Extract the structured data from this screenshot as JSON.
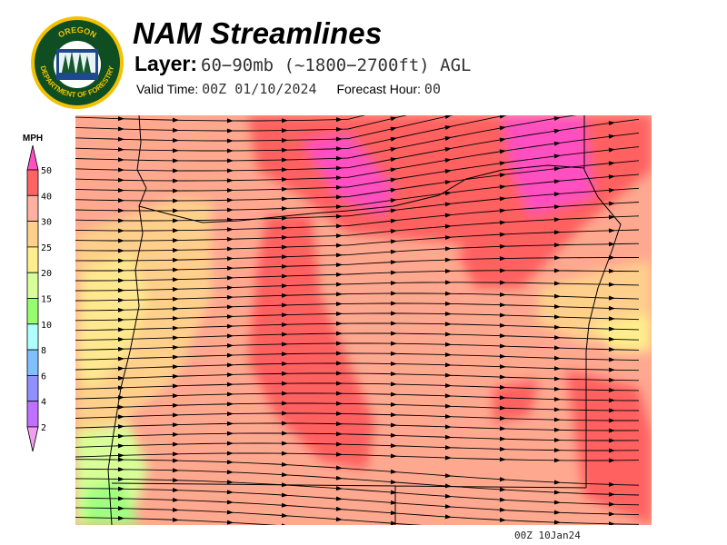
{
  "logo": {
    "top_text": "OREGON",
    "bottom_text": "DEPARTMENT OF FORESTRY",
    "colors": {
      "ring": "#f2c200",
      "field": "#0f4d22",
      "water": "#1d4a8a"
    }
  },
  "header": {
    "title": "NAM Streamlines",
    "layer_label": "Layer:",
    "layer_value": "60−90mb (~1800−2700ft) AGL",
    "valid_label": "Valid Time:",
    "valid_value": "00Z 01/10/2024",
    "forecast_label": "Forecast Hour:",
    "forecast_value": "00"
  },
  "legend": {
    "unit": "MPH",
    "labels": [
      "50",
      "40",
      "30",
      "25",
      "20",
      "15",
      "10",
      "8",
      "6",
      "4",
      "2"
    ],
    "bins": [
      {
        "range": "40-50",
        "color": "#ff6464"
      },
      {
        "range": "30-40",
        "color": "#ffb0a0"
      },
      {
        "range": "25-30",
        "color": "#ffd08c"
      },
      {
        "range": "20-25",
        "color": "#ffee8c"
      },
      {
        "range": "15-20",
        "color": "#d8ff98"
      },
      {
        "range": "10-15",
        "color": "#96ff6e"
      },
      {
        "range": "8-10",
        "color": "#b0ffff"
      },
      {
        "range": "6-8",
        "color": "#80c0ff"
      },
      {
        "range": "4-6",
        "color": "#9090ff"
      },
      {
        "range": "2-4",
        "color": "#c070ff"
      }
    ],
    "over_color": "#ff50c0",
    "under_color": "#f0a0f0"
  },
  "footer": {
    "stamp": "00Z 10Jan24"
  }
}
